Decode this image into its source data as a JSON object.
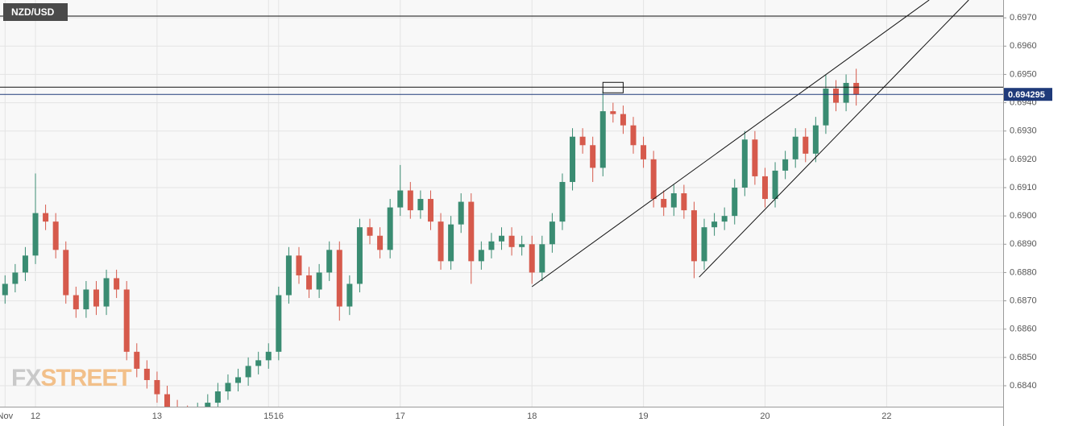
{
  "chart_data": {
    "type": "candlestick",
    "title": "NZD/USD",
    "watermark": {
      "fx": "FX",
      "street": "STREET"
    },
    "categories": [
      "Nov",
      null,
      null,
      "12",
      null,
      null,
      null,
      null,
      null,
      null,
      null,
      null,
      null,
      null,
      null,
      "13",
      null,
      null,
      null,
      null,
      null,
      null,
      null,
      null,
      null,
      null,
      "15",
      "16",
      null,
      null,
      null,
      null,
      null,
      null,
      null,
      null,
      null,
      null,
      null,
      "17",
      null,
      null,
      null,
      null,
      null,
      null,
      null,
      null,
      null,
      null,
      null,
      null,
      "18",
      null,
      null,
      null,
      null,
      null,
      null,
      null,
      null,
      null,
      null,
      "19",
      null,
      null,
      null,
      null,
      null,
      null,
      null,
      null,
      null,
      null,
      null,
      "20",
      null,
      null,
      null,
      null,
      null,
      null,
      null,
      null,
      null,
      null,
      null,
      "22",
      null,
      null,
      null,
      null,
      null,
      null,
      null,
      null,
      null,
      null,
      null
    ],
    "open": [
      0.6872,
      0.6876,
      0.688,
      0.6886,
      0.6901,
      0.6898,
      0.6888,
      0.6872,
      0.6867,
      0.6874,
      0.6868,
      0.6878,
      0.6874,
      0.6852,
      0.6846,
      0.6842,
      0.6837,
      0.6832,
      0.683,
      0.6829,
      0.6831,
      0.6834,
      0.6838,
      0.6841,
      0.6843,
      0.6847,
      0.6849,
      0.6852,
      0.6872,
      0.6886,
      0.6879,
      0.6874,
      0.688,
      0.6888,
      0.6868,
      0.6876,
      0.6896,
      0.6893,
      0.6888,
      0.6903,
      0.6909,
      0.6902,
      0.6906,
      0.6898,
      0.6884,
      0.6897,
      0.6905,
      0.6884,
      0.6888,
      0.6891,
      0.6893,
      0.6889,
      0.689,
      0.688,
      0.689,
      0.6898,
      0.6912,
      0.6928,
      0.6925,
      0.6917,
      0.6937,
      0.6936,
      0.6932,
      0.6925,
      0.692,
      0.6906,
      0.6903,
      0.6908,
      0.6902,
      0.6884,
      0.6896,
      0.6898,
      0.69,
      0.691,
      0.6927,
      0.6914,
      0.6906,
      0.6916,
      0.692,
      0.6928,
      0.6922,
      0.6932,
      0.6945,
      0.694,
      0.6947,
      null,
      null,
      null,
      null,
      null,
      null,
      null,
      null,
      null,
      null,
      null,
      null,
      null,
      null
    ],
    "high": [
      0.6879,
      0.6883,
      0.6889,
      0.6915,
      0.6904,
      0.6901,
      0.6891,
      0.6875,
      0.6877,
      0.6877,
      0.6881,
      0.6881,
      0.6877,
      0.6855,
      0.6849,
      0.6845,
      0.684,
      0.6835,
      0.6833,
      0.6834,
      0.6837,
      0.6841,
      0.6844,
      0.6846,
      0.685,
      0.6852,
      0.6855,
      0.6875,
      0.6889,
      0.6889,
      0.6882,
      0.6883,
      0.6891,
      0.6891,
      0.6879,
      0.6899,
      0.6899,
      0.6896,
      0.6906,
      0.6918,
      0.6912,
      0.6909,
      0.6909,
      0.6901,
      0.69,
      0.6908,
      0.6908,
      0.6891,
      0.6894,
      0.6896,
      0.6896,
      0.6893,
      0.6893,
      0.6893,
      0.6901,
      0.6915,
      0.6931,
      0.6931,
      0.6928,
      0.6944,
      0.694,
      0.6939,
      0.6935,
      0.6928,
      0.6923,
      0.6909,
      0.6911,
      0.6911,
      0.6905,
      0.6899,
      0.6901,
      0.6903,
      0.6913,
      0.693,
      0.693,
      0.6917,
      0.6919,
      0.6923,
      0.6931,
      0.6931,
      0.6935,
      0.695,
      0.6948,
      0.695,
      0.6952,
      null,
      null,
      null,
      null,
      null,
      null,
      null,
      null,
      null,
      null,
      null,
      null,
      null,
      null
    ],
    "low": [
      0.6869,
      0.6873,
      0.6877,
      0.6883,
      0.6895,
      0.6885,
      0.6869,
      0.6864,
      0.6864,
      0.6865,
      0.6865,
      0.6871,
      0.6849,
      0.6843,
      0.6839,
      0.6834,
      0.6829,
      0.6827,
      0.6826,
      0.6826,
      0.6828,
      0.6831,
      0.6835,
      0.6838,
      0.684,
      0.6844,
      0.6846,
      0.6849,
      0.6869,
      0.6876,
      0.6871,
      0.6871,
      0.6877,
      0.6863,
      0.6865,
      0.6873,
      0.689,
      0.6885,
      0.6885,
      0.69,
      0.6899,
      0.6899,
      0.6895,
      0.6881,
      0.6881,
      0.6894,
      0.6876,
      0.6881,
      0.6885,
      0.6888,
      0.6886,
      0.6886,
      0.6876,
      0.6877,
      0.6887,
      0.6895,
      0.6909,
      0.6922,
      0.6912,
      0.6914,
      0.6933,
      0.6929,
      0.6922,
      0.6917,
      0.6903,
      0.69,
      0.69,
      0.6899,
      0.6878,
      0.6881,
      0.6893,
      0.6895,
      0.6897,
      0.6907,
      0.6911,
      0.6903,
      0.6903,
      0.6913,
      0.6917,
      0.6919,
      0.6919,
      0.6929,
      0.6937,
      0.6937,
      0.6939,
      null,
      null,
      null,
      null,
      null,
      null,
      null,
      null,
      null,
      null,
      null,
      null,
      null,
      null
    ],
    "close": [
      0.6876,
      0.688,
      0.6886,
      0.6901,
      0.6898,
      0.6888,
      0.6872,
      0.6867,
      0.6874,
      0.6868,
      0.6878,
      0.6874,
      0.6852,
      0.6846,
      0.6842,
      0.6837,
      0.6832,
      0.683,
      0.6829,
      0.6831,
      0.6834,
      0.6838,
      0.6841,
      0.6843,
      0.6847,
      0.6849,
      0.6852,
      0.6872,
      0.6886,
      0.6879,
      0.6874,
      0.688,
      0.6888,
      0.6868,
      0.6876,
      0.6896,
      0.6893,
      0.6888,
      0.6903,
      0.6909,
      0.6902,
      0.6906,
      0.6898,
      0.6884,
      0.6897,
      0.6905,
      0.6884,
      0.6888,
      0.6891,
      0.6893,
      0.6889,
      0.689,
      0.688,
      0.689,
      0.6898,
      0.6912,
      0.6928,
      0.6925,
      0.6917,
      0.6937,
      0.6936,
      0.6932,
      0.6925,
      0.692,
      0.6906,
      0.6903,
      0.6908,
      0.6902,
      0.6884,
      0.6896,
      0.6898,
      0.69,
      0.691,
      0.6927,
      0.6914,
      0.6906,
      0.6916,
      0.692,
      0.6928,
      0.6922,
      0.6932,
      0.6945,
      0.694,
      0.6947,
      0.6943,
      null,
      null,
      null,
      null,
      null,
      null,
      null,
      null,
      null,
      null,
      null,
      null,
      null,
      null
    ],
    "up_color": "#3a8c72",
    "down_color": "#d65a4c",
    "ylim": [
      0.68326,
      0.69763
    ],
    "yticks": [
      {
        "value": 0.684,
        "label": "0.6840"
      },
      {
        "value": 0.685,
        "label": "0.6850"
      },
      {
        "value": 0.686,
        "label": "0.6860"
      },
      {
        "value": 0.687,
        "label": "0.6870"
      },
      {
        "value": 0.688,
        "label": "0.6880"
      },
      {
        "value": 0.689,
        "label": "0.6890"
      },
      {
        "value": 0.69,
        "label": "0.6900"
      },
      {
        "value": 0.691,
        "label": "0.6910"
      },
      {
        "value": 0.692,
        "label": "0.6920"
      },
      {
        "value": 0.693,
        "label": "0.6930"
      },
      {
        "value": 0.694,
        "label": "0.6940"
      },
      {
        "value": 0.695,
        "label": "0.6950"
      },
      {
        "value": 0.696,
        "label": "0.6960"
      },
      {
        "value": 0.697,
        "label": "0.6970"
      }
    ],
    "grid": true,
    "last_price": 0.694295,
    "last_price_color": "#1f3a7a",
    "levels": [
      0.69706,
      0.69455
    ],
    "box": {
      "x": [
        59.5,
        61.5
      ],
      "y": [
        0.69435,
        0.69472
      ]
    },
    "trendlines": [
      {
        "x": [
          52,
          91.2
        ],
        "y": [
          0.6875,
          0.69763
        ]
      },
      {
        "x": [
          68.5,
          95.1
        ],
        "y": [
          0.68784,
          0.69763
        ]
      }
    ]
  }
}
